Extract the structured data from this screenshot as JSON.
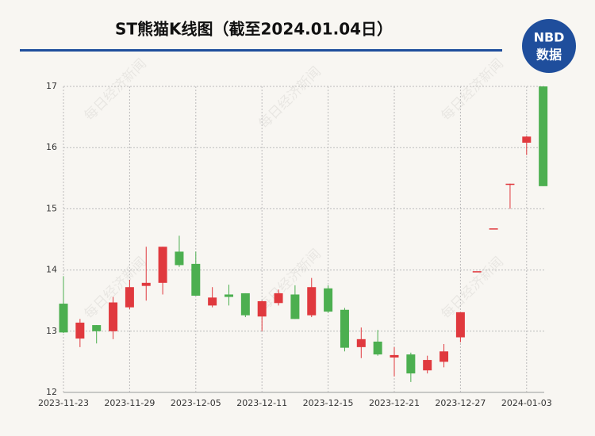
{
  "chart_data": {
    "type": "candlestick",
    "title": "ST熊猫K线图（截至2024.01.04日）",
    "logo_top": "NBD",
    "logo_bottom": "数据",
    "watermark": "每日经济新闻",
    "categories": [
      "2023-11-23",
      null,
      null,
      null,
      "2023-11-29",
      null,
      null,
      null,
      "2023-12-05",
      null,
      null,
      null,
      "2023-12-11",
      null,
      null,
      null,
      "2023-12-15",
      null,
      null,
      null,
      "2023-12-21",
      null,
      null,
      null,
      "2023-12-27",
      null,
      null,
      null,
      "2024-01-03",
      null
    ],
    "open": [
      13.45,
      12.88,
      13.1,
      13.0,
      13.39,
      13.74,
      13.79,
      14.3,
      14.1,
      13.42,
      13.6,
      13.62,
      13.24,
      13.46,
      13.6,
      13.26,
      13.7,
      13.35,
      12.74,
      12.83,
      12.57,
      12.62,
      12.36,
      12.5,
      12.9,
      13.98,
      14.68,
      15.41,
      16.08,
      17.0
    ],
    "high": [
      13.9,
      13.2,
      13.1,
      13.56,
      13.84,
      14.38,
      14.38,
      14.56,
      14.3,
      13.72,
      13.76,
      13.62,
      13.5,
      13.68,
      13.75,
      13.87,
      13.75,
      13.38,
      13.06,
      13.02,
      12.74,
      12.65,
      12.6,
      12.79,
      13.31,
      13.98,
      14.68,
      15.41,
      16.19,
      17.0
    ],
    "low": [
      12.97,
      12.74,
      12.8,
      12.87,
      13.36,
      13.5,
      13.6,
      14.05,
      13.58,
      13.39,
      13.42,
      13.23,
      13.0,
      13.42,
      13.2,
      13.23,
      13.3,
      12.67,
      12.56,
      12.6,
      12.26,
      12.17,
      12.31,
      12.41,
      12.82,
      13.98,
      14.68,
      15.0,
      15.88,
      15.37
    ],
    "close": [
      12.98,
      13.14,
      13.0,
      13.47,
      13.72,
      13.79,
      14.38,
      14.08,
      13.58,
      13.55,
      13.56,
      13.26,
      13.49,
      13.62,
      13.2,
      13.72,
      13.32,
      12.73,
      12.87,
      12.62,
      12.61,
      12.31,
      12.53,
      12.67,
      13.31,
      13.98,
      14.68,
      15.41,
      16.18,
      15.37
    ],
    "up_color": "#e0393e",
    "down_color": "#4caf50",
    "ylim": [
      12,
      17
    ],
    "yticks": [
      12,
      13,
      14,
      15,
      16,
      17
    ],
    "grid": true
  }
}
